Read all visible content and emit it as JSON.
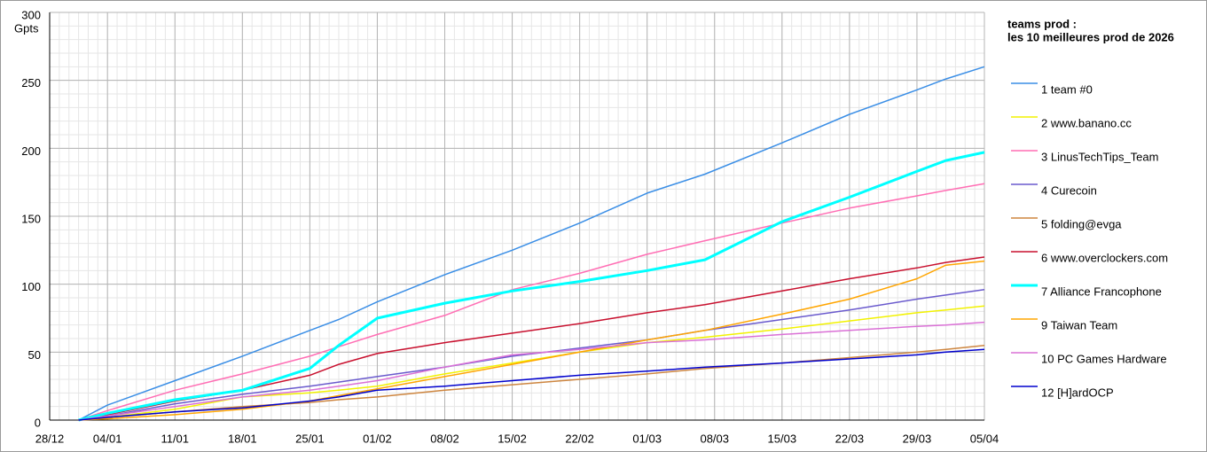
{
  "chart_data": {
    "type": "line",
    "legend_title": [
      "teams prod :",
      "les 10 meilleures prod de 2026"
    ],
    "y_label": "Gpts",
    "x": [
      "31/12",
      "04/01",
      "11/01",
      "18/01",
      "25/01",
      "28/01",
      "01/02",
      "08/02",
      "15/02",
      "22/02",
      "01/03",
      "07/03",
      "15/03",
      "22/03",
      "29/03",
      "01/04",
      "05/04"
    ],
    "xlim": [
      "28/12",
      "05/04"
    ],
    "xticks": [
      "28/12",
      "04/01",
      "11/01",
      "18/01",
      "25/01",
      "01/02",
      "08/02",
      "15/02",
      "22/02",
      "01/03",
      "08/03",
      "15/03",
      "22/03",
      "29/03",
      "05/04"
    ],
    "ylim": [
      0,
      300
    ],
    "yticks": [
      0,
      50,
      100,
      150,
      200,
      250,
      300
    ],
    "grid": true,
    "legend": "right",
    "series": [
      {
        "name": "1 team #0",
        "color": "#3a8ee6",
        "values": [
          0,
          11,
          29,
          47,
          66,
          74,
          87,
          107,
          125,
          145,
          167,
          181,
          204,
          225,
          243,
          251,
          260
        ]
      },
      {
        "name": "2 www.banano.cc",
        "color": "#f2f200",
        "values": [
          0,
          2,
          8,
          17,
          20,
          22,
          25,
          34,
          42,
          50,
          57,
          61,
          67,
          73,
          79,
          81,
          84
        ]
      },
      {
        "name": "3 LinusTechTips_Team",
        "color": "#ff6eb4",
        "values": [
          0,
          7,
          22,
          34,
          47,
          54,
          63,
          77,
          96,
          108,
          122,
          132,
          145,
          156,
          165,
          169,
          174
        ]
      },
      {
        "name": "4 Curecoin",
        "color": "#6a5acd",
        "values": [
          0,
          3,
          12,
          19,
          25,
          28,
          32,
          39,
          47,
          53,
          59,
          66,
          74,
          81,
          89,
          92,
          96
        ]
      },
      {
        "name": "5 folding@evga",
        "color": "#cd853f",
        "values": [
          0,
          2,
          6,
          10,
          13,
          15,
          17,
          22,
          26,
          30,
          34,
          38,
          42,
          46,
          50,
          52,
          55
        ]
      },
      {
        "name": "6 www.overclockers.com",
        "color": "#c8102e",
        "values": [
          0,
          4,
          14,
          22,
          33,
          41,
          49,
          57,
          64,
          71,
          79,
          85,
          95,
          104,
          112,
          116,
          120
        ]
      },
      {
        "name": "7 Alliance Francophone",
        "color": "#00ffff",
        "values": [
          0,
          5,
          15,
          22,
          38,
          55,
          75,
          86,
          95,
          102,
          110,
          118,
          146,
          164,
          183,
          191,
          197
        ]
      },
      {
        "name": "9 Taiwan Team",
        "color": "#ffa500",
        "values": [
          0,
          1,
          4,
          8,
          14,
          18,
          23,
          32,
          41,
          50,
          59,
          66,
          78,
          89,
          104,
          114,
          117
        ]
      },
      {
        "name": "10 PC Games Hardware",
        "color": "#da70d6",
        "values": [
          0,
          3,
          10,
          17,
          22,
          25,
          29,
          39,
          48,
          52,
          57,
          59,
          63,
          66,
          69,
          70,
          72
        ]
      },
      {
        "name": "12 [H]ardOCP",
        "color": "#0000cd",
        "values": [
          0,
          2,
          6,
          9,
          14,
          17,
          22,
          25,
          29,
          33,
          36,
          39,
          42,
          45,
          48,
          50,
          52
        ]
      }
    ]
  }
}
